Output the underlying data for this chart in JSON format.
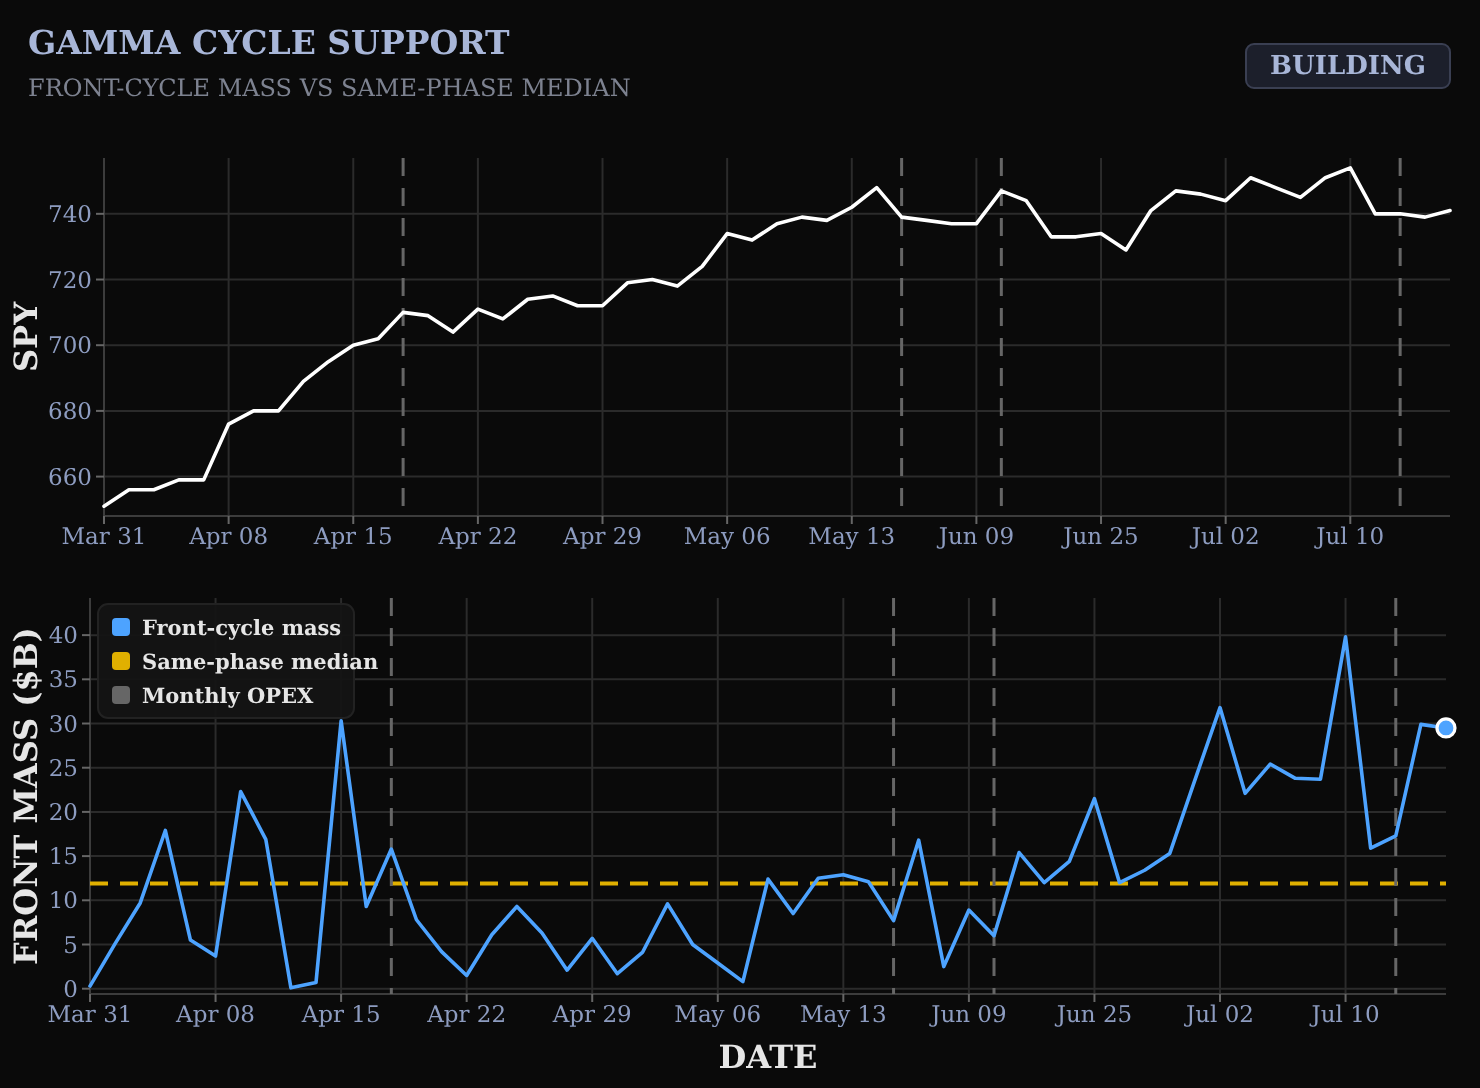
{
  "chart_data": [
    {
      "type": "line",
      "title": "GAMMA CYCLE SUPPORT",
      "subtitle": "FRONT-CYCLE MASS VS SAME-PHASE MEDIAN",
      "annotations": [
        "BUILDING"
      ],
      "ylabel": "SPY",
      "categories": [
        "Mar 31",
        null,
        null,
        null,
        null,
        "Apr 08",
        null,
        null,
        null,
        null,
        "Apr 15",
        null,
        null,
        null,
        null,
        "Apr 22",
        null,
        null,
        null,
        null,
        "Apr 29",
        null,
        null,
        null,
        null,
        "May 06",
        null,
        null,
        null,
        null,
        "May 13",
        null,
        null,
        null,
        null,
        "Jun 09",
        null,
        null,
        null,
        null,
        "Jun 25",
        null,
        null,
        null,
        null,
        "Jul 02",
        null,
        null,
        null,
        null,
        "Jul 10",
        null,
        null,
        null,
        null
      ],
      "series": [
        {
          "color": "#ffffff",
          "values": [
            651,
            656,
            656,
            659,
            659,
            676,
            680,
            680,
            689,
            695,
            700,
            702,
            710,
            709,
            704,
            711,
            708,
            714,
            715,
            712,
            712,
            719,
            720,
            718,
            724,
            734,
            732,
            737,
            739,
            738,
            742,
            748,
            739,
            738,
            737,
            737,
            747,
            744,
            733,
            733,
            734,
            729,
            741,
            747,
            746,
            744,
            751,
            748,
            745,
            751,
            754,
            740,
            740,
            739,
            741
          ]
        }
      ],
      "ylim": [
        648,
        757
      ],
      "yticks": [
        660,
        680,
        700,
        720,
        740
      ],
      "grid": true,
      "ref_lines": [
        {
          "axis": "x",
          "color": "#666666",
          "line_style": "dashed"
        }
      ]
    },
    {
      "type": "line",
      "xlabel": "DATE",
      "ylabel": "FRONT MASS ($B)",
      "categories": [
        "Mar 31",
        null,
        null,
        null,
        null,
        "Apr 08",
        null,
        null,
        null,
        null,
        "Apr 15",
        null,
        null,
        null,
        null,
        "Apr 22",
        null,
        null,
        null,
        null,
        "Apr 29",
        null,
        null,
        null,
        null,
        "May 06",
        null,
        null,
        null,
        null,
        "May 13",
        null,
        null,
        null,
        null,
        "Jun 09",
        null,
        null,
        null,
        null,
        "Jun 25",
        null,
        null,
        null,
        null,
        "Jul 02",
        null,
        null,
        null,
        null,
        "Jul 10",
        null,
        null,
        null,
        null
      ],
      "series": [
        {
          "name": "Front-cycle mass",
          "color": "#4da3ff",
          "values": [
            0.3,
            5.1,
            9.7,
            17.9,
            5.5,
            3.7,
            22.3,
            16.9,
            0.1,
            0.7,
            30.3,
            9.3,
            15.8,
            7.8,
            4.2,
            1.5,
            6.1,
            9.3,
            6.3,
            2.1,
            5.7,
            1.7,
            4.1,
            9.6,
            5.0,
            2.9,
            0.8,
            12.4,
            8.5,
            12.5,
            12.9,
            12.1,
            7.7,
            16.8,
            2.5,
            8.9,
            6.0,
            15.4,
            12.0,
            14.4,
            21.5,
            12.0,
            13.4,
            15.3,
            23.6,
            31.8,
            22.1,
            25.4,
            23.8,
            23.7,
            39.8,
            15.9,
            17.3,
            29.9,
            29.5
          ]
        },
        {
          "type": "scatter",
          "color": "#4da3ff",
          "marker": "circle",
          "values": [
            null,
            null,
            null,
            null,
            null,
            null,
            null,
            null,
            null,
            null,
            null,
            null,
            null,
            null,
            null,
            null,
            null,
            null,
            null,
            null,
            null,
            null,
            null,
            null,
            null,
            null,
            null,
            null,
            null,
            null,
            null,
            null,
            null,
            null,
            null,
            null,
            null,
            null,
            null,
            null,
            null,
            null,
            null,
            null,
            null,
            null,
            null,
            null,
            null,
            null,
            null,
            null,
            null,
            null,
            29.5
          ]
        }
      ],
      "ylim": [
        -0.6,
        44.2
      ],
      "yticks": [
        0,
        5,
        10,
        15,
        20,
        25,
        30,
        35,
        40
      ],
      "grid": true,
      "legend": "top left",
      "ref_lines": [
        {
          "axis": "y",
          "value": 11.9,
          "label": "Same-phase median",
          "color": "#e0b000",
          "line_style": "dashed"
        },
        {
          "axis": "x",
          "label": "Monthly OPEX",
          "color": "#666666",
          "line_style": "dashed"
        }
      ]
    }
  ]
}
